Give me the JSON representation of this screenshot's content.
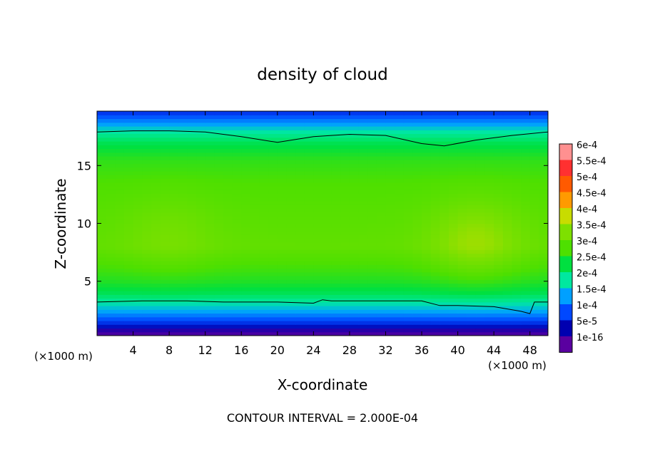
{
  "chart_data": {
    "type": "heatmap",
    "title": "density of cloud",
    "xlabel": "X-coordinate",
    "ylabel": "Z-coordinate",
    "x_unit_left": "(×1000 m)",
    "x_unit_right": "(×1000 m)",
    "xlim": [
      0,
      50
    ],
    "ylim": [
      0.3,
      19.7
    ],
    "x_ticks": [
      4,
      8,
      12,
      16,
      20,
      24,
      28,
      32,
      36,
      40,
      44,
      48
    ],
    "y_ticks": [
      5,
      10,
      15
    ],
    "footer": "CONTOUR INTERVAL = 2.000E-04",
    "contour_interval": 0.0002,
    "colorbar": {
      "labels": [
        "6e-4",
        "5.5e-4",
        "5e-4",
        "4.5e-4",
        "4e-4",
        "3.5e-4",
        "3e-4",
        "2.5e-4",
        "2e-4",
        "1.5e-4",
        "1e-4",
        "5e-5",
        "1e-16"
      ],
      "values": [
        0.0006,
        0.00055,
        0.0005,
        0.00045,
        0.0004,
        0.00035,
        0.0003,
        0.00025,
        0.0002,
        0.00015,
        0.0001,
        5e-05,
        1e-16
      ],
      "colors": [
        "#ff9090",
        "#ff3030",
        "#ff5a00",
        "#ff9a00",
        "#c8dc00",
        "#7ee000",
        "#4ee000",
        "#00e040",
        "#00e8a0",
        "#00a0ff",
        "#0048ff",
        "#0000b0",
        "#5a00a0"
      ]
    },
    "contour_levels": [
      0.0002
    ],
    "contour_lines": [
      {
        "level": 0.0002,
        "points": [
          [
            0,
            17.9
          ],
          [
            4,
            18.0
          ],
          [
            8,
            18.0
          ],
          [
            12,
            17.9
          ],
          [
            16,
            17.5
          ],
          [
            20,
            17.0
          ],
          [
            24,
            17.5
          ],
          [
            28,
            17.7
          ],
          [
            32,
            17.6
          ],
          [
            36,
            16.9
          ],
          [
            38.5,
            16.7
          ],
          [
            42,
            17.2
          ],
          [
            46,
            17.6
          ],
          [
            50,
            17.9
          ]
        ]
      },
      {
        "level": 0.0002,
        "points": [
          [
            0,
            3.2
          ],
          [
            5,
            3.3
          ],
          [
            10,
            3.3
          ],
          [
            14,
            3.2
          ],
          [
            20,
            3.2
          ],
          [
            24,
            3.1
          ],
          [
            25,
            3.4
          ],
          [
            26,
            3.3
          ],
          [
            32,
            3.3
          ],
          [
            36,
            3.3
          ],
          [
            38,
            2.9
          ],
          [
            40,
            2.9
          ],
          [
            44,
            2.8
          ],
          [
            47,
            2.4
          ],
          [
            48,
            2.2
          ],
          [
            48.5,
            3.2
          ],
          [
            50,
            3.2
          ]
        ]
      }
    ],
    "field_profile_z": [
      0.3,
      0.8,
      1.2,
      1.8,
      2.5,
      3.2,
      4.0,
      5.0,
      6.0,
      8.0,
      11.0,
      13.5,
      15.5,
      17.0,
      17.9,
      18.6,
      19.2,
      19.7
    ],
    "field_profile_value": [
      1e-16,
      3e-05,
      7e-05,
      0.00011,
      0.00016,
      0.0002,
      0.00024,
      0.00027,
      0.00029,
      0.00032,
      0.00031,
      0.0003,
      0.00028,
      0.00024,
      0.0002,
      0.00015,
      0.00011,
      8e-05
    ],
    "maxima": [
      {
        "x": 42,
        "z": 8.5,
        "value": 0.00037
      },
      {
        "x": 8,
        "z": 9.0,
        "value": 0.00034
      }
    ],
    "grid": false,
    "colorbar_placement": "right"
  }
}
